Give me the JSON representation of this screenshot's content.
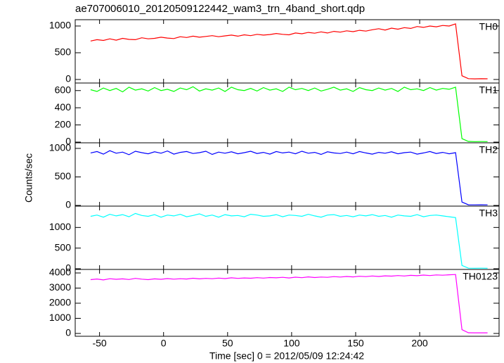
{
  "chart_data": {
    "type": "line",
    "title": "ae707006010_20120509122442_wam3_trn_4band_short.qdp",
    "xlabel": "Time [sec] 0 = 2012/05/09 12:24:42",
    "ylabel": "Counts/sec",
    "xlim": [
      -69,
      262
    ],
    "xticks": [
      -50,
      0,
      50,
      100,
      150,
      200
    ],
    "x": [
      -57,
      -52,
      -47,
      -42,
      -37,
      -32,
      -27,
      -22,
      -17,
      -12,
      -7,
      -2,
      3,
      8,
      13,
      18,
      23,
      28,
      33,
      38,
      43,
      48,
      53,
      58,
      63,
      68,
      73,
      78,
      83,
      88,
      93,
      98,
      103,
      108,
      113,
      118,
      123,
      128,
      133,
      138,
      143,
      148,
      153,
      158,
      163,
      168,
      173,
      178,
      183,
      188,
      193,
      198,
      203,
      208,
      213,
      218,
      223,
      228,
      233,
      238,
      243,
      248,
      253
    ],
    "series": [
      {
        "name": "TH0",
        "color": "#ff0000",
        "ylim": [
          -66,
          1118
        ],
        "yticks": [
          0,
          500,
          1000
        ],
        "values": [
          720,
          745,
          730,
          760,
          735,
          770,
          750,
          745,
          780,
          760,
          770,
          790,
          775,
          765,
          800,
          785,
          810,
          790,
          805,
          820,
          800,
          815,
          830,
          810,
          835,
          820,
          845,
          830,
          840,
          860,
          845,
          835,
          870,
          855,
          880,
          865,
          890,
          870,
          900,
          885,
          910,
          895,
          920,
          905,
          930,
          950,
          925,
          960,
          940,
          970,
          955,
          990,
          975,
          1000,
          985,
          1010,
          1000,
          1040,
          70,
          15,
          12,
          14,
          13
        ]
      },
      {
        "name": "TH1",
        "color": "#00ff00",
        "ylim": [
          -8,
          688
        ],
        "yticks": [
          0,
          200,
          400,
          600
        ],
        "values": [
          610,
          590,
          630,
          600,
          625,
          585,
          640,
          605,
          620,
          595,
          635,
          600,
          615,
          590,
          630,
          610,
          645,
          595,
          620,
          605,
          630,
          590,
          640,
          610,
          600,
          625,
          595,
          635,
          605,
          620,
          590,
          640,
          610,
          625,
          600,
          630,
          595,
          615,
          640,
          605,
          620,
          590,
          635,
          610,
          600,
          630,
          605,
          625,
          590,
          640,
          610,
          620,
          600,
          635,
          605,
          625,
          615,
          640,
          40,
          8,
          6,
          7,
          6
        ]
      },
      {
        "name": "TH2",
        "color": "#0000ff",
        "ylim": [
          -12,
          1098
        ],
        "yticks": [
          0,
          500,
          1000
        ],
        "values": [
          920,
          945,
          900,
          960,
          915,
          935,
          890,
          950,
          925,
          905,
          940,
          915,
          955,
          900,
          930,
          945,
          910,
          925,
          950,
          895,
          935,
          915,
          940,
          905,
          925,
          950,
          910,
          930,
          900,
          945,
          920,
          935,
          905,
          950,
          915,
          930,
          895,
          940,
          920,
          910,
          935,
          905,
          945,
          920,
          900,
          930,
          915,
          940,
          905,
          925,
          935,
          900,
          920,
          945,
          910,
          930,
          905,
          925,
          60,
          12,
          10,
          11,
          10
        ]
      },
      {
        "name": "TH3",
        "color": "#00ffff",
        "ylim": [
          -17,
          1517
        ],
        "yticks": [
          0,
          500,
          1000
        ],
        "values": [
          1270,
          1300,
          1250,
          1320,
          1280,
          1310,
          1260,
          1340,
          1290,
          1270,
          1310,
          1250,
          1300,
          1280,
          1320,
          1260,
          1290,
          1330,
          1270,
          1300,
          1250,
          1310,
          1280,
          1290,
          1260,
          1320,
          1300,
          1270,
          1280,
          1310,
          1260,
          1300,
          1290,
          1270,
          1320,
          1280,
          1250,
          1300,
          1310,
          1270,
          1290,
          1260,
          1300,
          1280,
          1310,
          1270,
          1290,
          1250,
          1300,
          1280,
          1270,
          1310,
          1260,
          1290,
          1300,
          1280,
          1260,
          1240,
          80,
          14,
          12,
          13,
          12
        ]
      },
      {
        "name": "TH0123",
        "color": "#ff00ff",
        "ylim": [
          -186,
          4233
        ],
        "yticks": [
          0,
          1000,
          2000,
          3000,
          4000
        ],
        "values": [
          3560,
          3600,
          3540,
          3620,
          3580,
          3610,
          3570,
          3640,
          3590,
          3560,
          3610,
          3580,
          3630,
          3590,
          3620,
          3600,
          3650,
          3610,
          3640,
          3620,
          3660,
          3630,
          3680,
          3640,
          3670,
          3650,
          3690,
          3660,
          3700,
          3680,
          3710,
          3670,
          3720,
          3690,
          3740,
          3700,
          3730,
          3710,
          3760,
          3730,
          3770,
          3740,
          3780,
          3760,
          3800,
          3770,
          3810,
          3790,
          3830,
          3800,
          3840,
          3820,
          3860,
          3830,
          3870,
          3850,
          3880,
          3900,
          250,
          45,
          40,
          42,
          40
        ]
      }
    ]
  }
}
